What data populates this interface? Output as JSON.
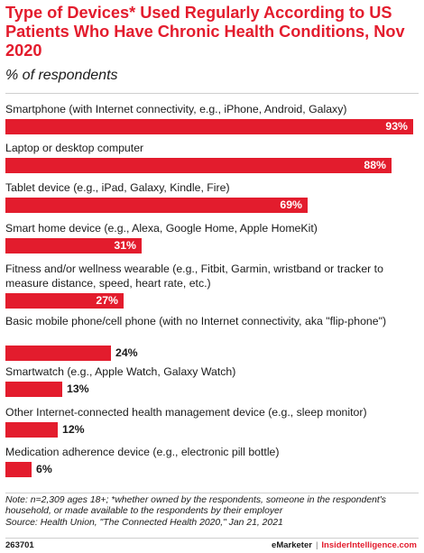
{
  "header": {
    "title": "Type of Devices* Used Regularly According to US Patients Who Have Chronic Health Conditions, Nov 2020",
    "subtitle": "% of respondents"
  },
  "chart_data": {
    "type": "bar",
    "orientation": "horizontal",
    "categories": [
      "Smartphone (with Internet connectivity, e.g., iPhone, Android, Galaxy)",
      "Laptop or desktop computer",
      "Tablet device (e.g., iPad, Galaxy, Kindle, Fire)",
      "Smart home device (e.g., Alexa, Google Home, Apple HomeKit)",
      "Fitness and/or wellness wearable (e.g., Fitbit, Garmin, wristband or tracker to measure distance, speed, heart rate, etc.)",
      "Basic mobile phone/cell phone (with no Internet connectivity, aka \"flip-phone\")",
      "Smartwatch (e.g., Apple Watch, Galaxy Watch)",
      "Other Internet-connected health management device (e.g., sleep monitor)",
      "Medication adherence device (e.g., electronic pill bottle)"
    ],
    "values": [
      93,
      88,
      69,
      31,
      27,
      24,
      13,
      12,
      6
    ],
    "value_labels": [
      "93%",
      "88%",
      "69%",
      "31%",
      "27%",
      "24%",
      "13%",
      "12%",
      "6%"
    ],
    "xlim": [
      0,
      93
    ],
    "bar_color": "#e31c2d",
    "grid": false,
    "legend": "none"
  },
  "footer": {
    "note": "Note: n=2,309 ages 18+; *whether owned by the respondents, someone in the respondent's household, or made available to the respondents by their employer",
    "source": "Source: Health Union, \"The Connected Health 2020,\" Jan 21, 2021",
    "chart_id": "263701",
    "brand_1": "eMarketer",
    "separator": "|",
    "brand_2": "InsiderIntelligence.com"
  }
}
